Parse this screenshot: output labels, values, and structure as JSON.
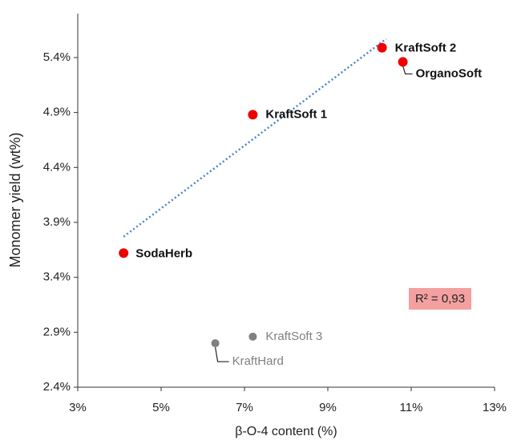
{
  "chart_data": {
    "type": "scatter",
    "x_label": "β-O-4 content (%)",
    "y_label": "Monomer yield (wt%)",
    "xlim": [
      3,
      13
    ],
    "xticks": [
      {
        "value": 3,
        "label": "3%"
      },
      {
        "value": 5,
        "label": "5%"
      },
      {
        "value": 7,
        "label": "7%"
      },
      {
        "value": 9,
        "label": "9%"
      },
      {
        "value": 11,
        "label": "11%"
      },
      {
        "value": 13,
        "label": "13%"
      }
    ],
    "ylim": [
      2.4,
      5.8
    ],
    "yticks": [
      {
        "value": 2.4,
        "label": "2.4%"
      },
      {
        "value": 2.9,
        "label": "2.9%"
      },
      {
        "value": 3.4,
        "label": "3.4%"
      },
      {
        "value": 3.9,
        "label": "3.9%"
      },
      {
        "value": 4.4,
        "label": "4.4%"
      },
      {
        "value": 4.9,
        "label": "4.9%"
      },
      {
        "value": 5.4,
        "label": "5.4%"
      }
    ],
    "points": [
      {
        "label": "SodaHerb",
        "x": 4.1,
        "y": 3.62,
        "color": "#ee0000"
      },
      {
        "label": "KraftSoft 1",
        "x": 7.2,
        "y": 4.88,
        "color": "#ee0000"
      },
      {
        "label": "KraftSoft 2",
        "x": 10.3,
        "y": 5.49,
        "color": "#ee0000"
      },
      {
        "label": "OrganoSoft",
        "x": 10.8,
        "y": 5.36,
        "color": "#ee0000"
      },
      {
        "label": "KraftSoft 3",
        "x": 7.2,
        "y": 2.86,
        "color": "#808080"
      },
      {
        "label": "KraftHard",
        "x": 6.3,
        "y": 2.8,
        "color": "#808080"
      }
    ],
    "trendline": {
      "x": [
        4.1,
        10.4
      ],
      "y": [
        3.77,
        5.57
      ],
      "color": "#4a86c5"
    },
    "annotation": "R² = 0,93"
  }
}
